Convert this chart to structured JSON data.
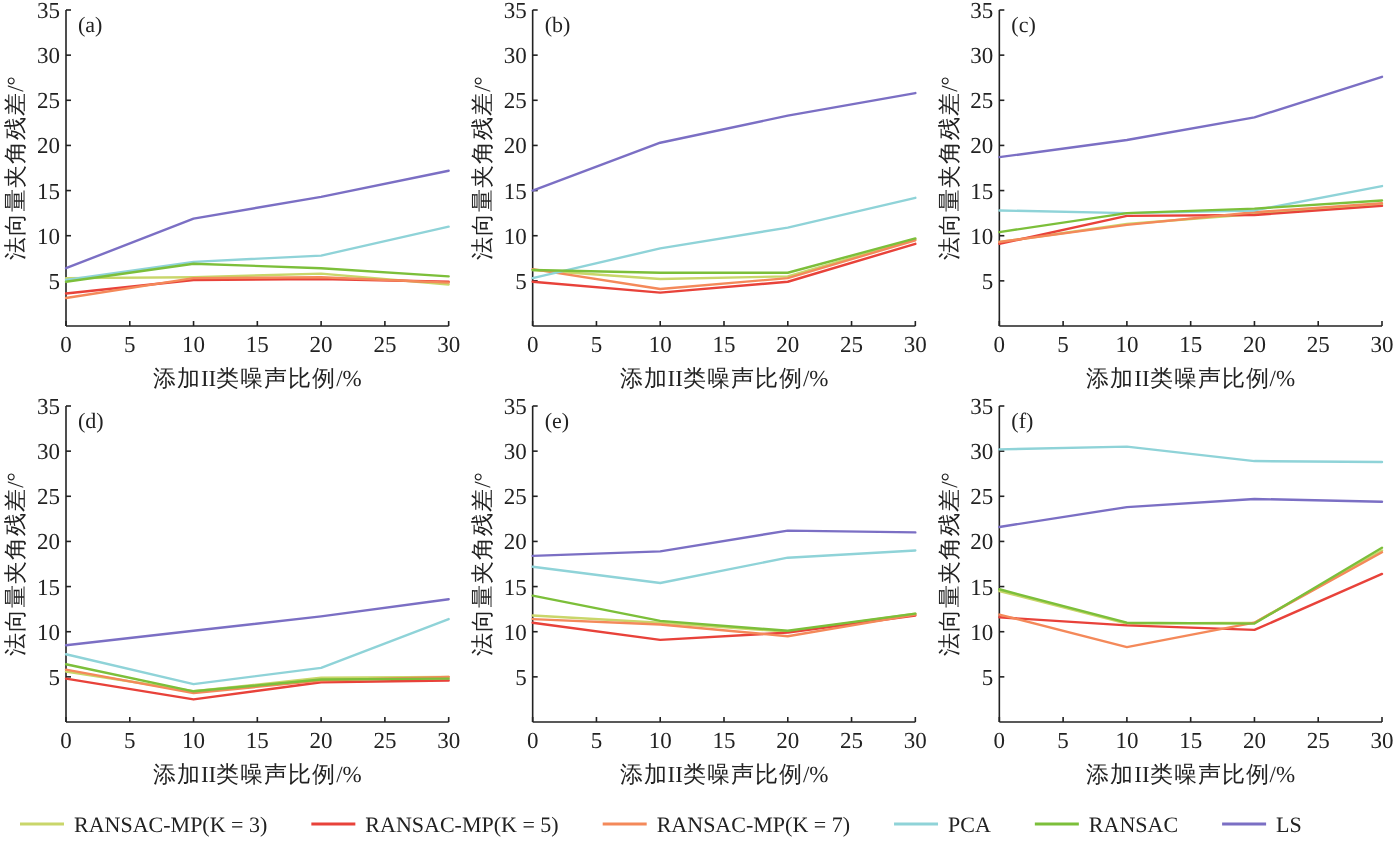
{
  "chart_data": [
    {
      "type": "line",
      "title": "(a)",
      "xlabel": "添加II类噪声比例/%",
      "ylabel": "法向量夹角残差/°",
      "x": [
        0,
        10,
        20,
        30
      ],
      "xlim": [
        0,
        30
      ],
      "xticks": [
        0,
        5,
        10,
        15,
        20,
        25,
        30
      ],
      "ylim": [
        0,
        35
      ],
      "yticks": [
        5,
        10,
        15,
        20,
        25,
        30,
        35
      ],
      "series": [
        {
          "color": "#c9d66a",
          "values": [
            5.3,
            5.4,
            5.8,
            4.6
          ]
        },
        {
          "color": "#e8423a",
          "values": [
            3.6,
            5.1,
            5.2,
            4.9
          ]
        },
        {
          "color": "#f4895a",
          "values": [
            3.1,
            5.3,
            5.4,
            4.8
          ]
        },
        {
          "color": "#8fd3d8",
          "values": [
            5.1,
            7.1,
            7.8,
            11.0
          ]
        },
        {
          "color": "#7cbf3a",
          "values": [
            4.9,
            6.9,
            6.4,
            5.5
          ]
        },
        {
          "color": "#7b6fc4",
          "values": [
            6.4,
            11.9,
            14.3,
            17.2
          ]
        }
      ]
    },
    {
      "type": "line",
      "title": "(b)",
      "xlabel": "添加II类噪声比例/%",
      "ylabel": "法向量夹角残差/°",
      "x": [
        0,
        10,
        20,
        30
      ],
      "xlim": [
        0,
        30
      ],
      "xticks": [
        0,
        5,
        10,
        15,
        20,
        25,
        30
      ],
      "ylim": [
        0,
        35
      ],
      "yticks": [
        5,
        10,
        15,
        20,
        25,
        30,
        35
      ],
      "series": [
        {
          "color": "#c9d66a",
          "values": [
            6.2,
            5.2,
            5.5,
            9.6
          ]
        },
        {
          "color": "#e8423a",
          "values": [
            4.9,
            3.7,
            4.9,
            9.1
          ]
        },
        {
          "color": "#f4895a",
          "values": [
            6.3,
            4.1,
            5.3,
            9.5
          ]
        },
        {
          "color": "#8fd3d8",
          "values": [
            5.3,
            8.6,
            10.9,
            14.2
          ]
        },
        {
          "color": "#7cbf3a",
          "values": [
            6.2,
            5.9,
            5.9,
            9.7
          ]
        },
        {
          "color": "#7b6fc4",
          "values": [
            15.0,
            20.3,
            23.3,
            25.8
          ]
        }
      ]
    },
    {
      "type": "line",
      "title": "(c)",
      "xlabel": "添加II类噪声比例/%",
      "ylabel": "法向量夹角残差/°",
      "x": [
        0,
        10,
        20,
        30
      ],
      "xlim": [
        0,
        30
      ],
      "xticks": [
        0,
        5,
        10,
        15,
        20,
        25,
        30
      ],
      "ylim": [
        0,
        35
      ],
      "yticks": [
        5,
        10,
        15,
        20,
        25,
        30,
        35
      ],
      "series": [
        {
          "color": "#c9d66a",
          "values": [
            9.3,
            11.3,
            12.4,
            13.5
          ]
        },
        {
          "color": "#e8423a",
          "values": [
            9.1,
            12.2,
            12.3,
            13.3
          ]
        },
        {
          "color": "#f4895a",
          "values": [
            9.3,
            11.2,
            12.6,
            13.6
          ]
        },
        {
          "color": "#8fd3d8",
          "values": [
            12.8,
            12.5,
            12.8,
            15.5
          ]
        },
        {
          "color": "#7cbf3a",
          "values": [
            10.4,
            12.5,
            13.0,
            13.9
          ]
        },
        {
          "color": "#7b6fc4",
          "values": [
            18.7,
            20.6,
            23.1,
            27.6
          ]
        }
      ]
    },
    {
      "type": "line",
      "title": "(d)",
      "xlabel": "添加II类噪声比例/%",
      "ylabel": "法向量夹角残差/°",
      "x": [
        0,
        10,
        20,
        30
      ],
      "xlim": [
        0,
        30
      ],
      "xticks": [
        0,
        5,
        10,
        15,
        20,
        25,
        30
      ],
      "ylim": [
        0,
        35
      ],
      "yticks": [
        5,
        10,
        15,
        20,
        25,
        30,
        35
      ],
      "series": [
        {
          "color": "#c9d66a",
          "values": [
            5.6,
            3.4,
            4.9,
            5.0
          ]
        },
        {
          "color": "#e8423a",
          "values": [
            4.8,
            2.5,
            4.4,
            4.6
          ]
        },
        {
          "color": "#f4895a",
          "values": [
            5.8,
            3.2,
            4.6,
            5.0
          ]
        },
        {
          "color": "#8fd3d8",
          "values": [
            7.5,
            4.2,
            6.0,
            11.4
          ]
        },
        {
          "color": "#7cbf3a",
          "values": [
            6.4,
            3.4,
            4.7,
            4.8
          ]
        },
        {
          "color": "#7b6fc4",
          "values": [
            8.5,
            10.1,
            11.7,
            13.6
          ]
        }
      ]
    },
    {
      "type": "line",
      "title": "(e)",
      "xlabel": "添加II类噪声比例/%",
      "ylabel": "法向量夹角残差/°",
      "x": [
        0,
        10,
        20,
        30
      ],
      "xlim": [
        0,
        30
      ],
      "xticks": [
        0,
        5,
        10,
        15,
        20,
        25,
        30
      ],
      "ylim": [
        0,
        35
      ],
      "yticks": [
        5,
        10,
        15,
        20,
        25,
        30,
        35
      ],
      "series": [
        {
          "color": "#c9d66a",
          "values": [
            11.8,
            11.0,
            10.0,
            12.0
          ]
        },
        {
          "color": "#e8423a",
          "values": [
            11.0,
            9.1,
            9.9,
            11.8
          ]
        },
        {
          "color": "#f4895a",
          "values": [
            11.4,
            10.8,
            9.5,
            11.9
          ]
        },
        {
          "color": "#8fd3d8",
          "values": [
            17.2,
            15.4,
            18.2,
            19.0
          ]
        },
        {
          "color": "#7cbf3a",
          "values": [
            14.0,
            11.2,
            10.1,
            12.0
          ]
        },
        {
          "color": "#7b6fc4",
          "values": [
            18.4,
            18.9,
            21.2,
            21.0
          ]
        }
      ]
    },
    {
      "type": "line",
      "title": "(f)",
      "xlabel": "添加II类噪声比例/%",
      "ylabel": "法向量夹角残差/°",
      "x": [
        0,
        10,
        20,
        30
      ],
      "xlim": [
        0,
        30
      ],
      "xticks": [
        0,
        5,
        10,
        15,
        20,
        25,
        30
      ],
      "ylim": [
        0,
        35
      ],
      "yticks": [
        5,
        10,
        15,
        20,
        25,
        30,
        35
      ],
      "legend": "bottom",
      "series": [
        {
          "name": "RANSAC-MP(K = 3)",
          "color": "#c9d66a",
          "values": [
            14.5,
            10.9,
            11.0,
            19.0
          ]
        },
        {
          "name": "RANSAC-MP(K = 5)",
          "color": "#e8423a",
          "values": [
            11.6,
            10.7,
            10.2,
            16.4
          ]
        },
        {
          "name": "RANSAC-MP(K = 7)",
          "color": "#f4895a",
          "values": [
            11.9,
            8.3,
            11.0,
            18.8
          ]
        },
        {
          "name": "PCA",
          "color": "#8fd3d8",
          "values": [
            30.2,
            30.5,
            28.9,
            28.8
          ]
        },
        {
          "name": "RANSAC",
          "color": "#7cbf3a",
          "values": [
            14.7,
            11.0,
            10.9,
            19.3
          ]
        },
        {
          "name": "LS",
          "color": "#7b6fc4",
          "values": [
            21.6,
            23.8,
            24.7,
            24.4
          ]
        }
      ]
    }
  ]
}
